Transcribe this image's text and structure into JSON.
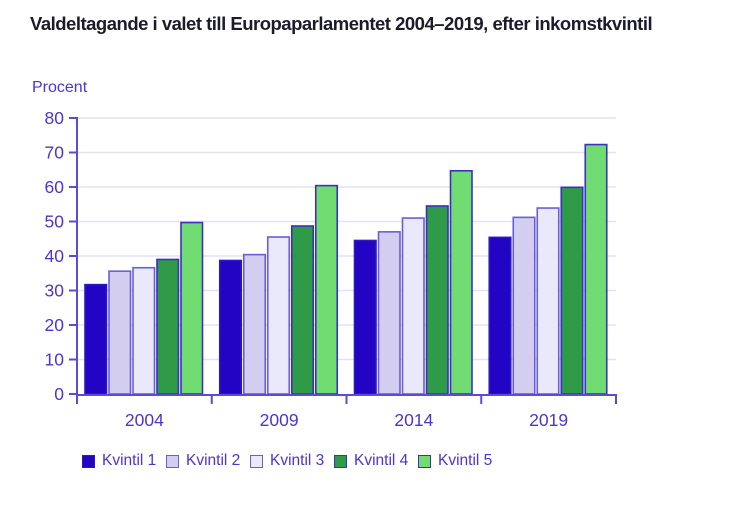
{
  "chart_data": {
    "type": "bar",
    "title": "Valdeltagande i valet till Europaparlamentet 2004–2019, efter inkomstkvintil",
    "ylabel": "Procent",
    "xlabel": "",
    "ylim": [
      0,
      80
    ],
    "ytick_step": 10,
    "grid": "horizontal",
    "legend_position": "bottom",
    "categories": [
      "2004",
      "2009",
      "2014",
      "2019"
    ],
    "series": [
      {
        "name": "Kvintil 1",
        "fill": "#2404c4",
        "stroke": "#2a18c0",
        "values": [
          31.7,
          38.7,
          44.5,
          45.4
        ]
      },
      {
        "name": "Kvintil 2",
        "fill": "#d3cdef",
        "stroke": "#6a5ed8",
        "values": [
          35.6,
          40.4,
          47.0,
          51.2
        ]
      },
      {
        "name": "Kvintil 3",
        "fill": "#eae9fb",
        "stroke": "#6a5ed8",
        "values": [
          36.6,
          45.5,
          51.0,
          53.9
        ]
      },
      {
        "name": "Kvintil 4",
        "fill": "#2f9a48",
        "stroke": "#3a30c2",
        "values": [
          39.0,
          48.7,
          54.5,
          59.9
        ]
      },
      {
        "name": "Kvintil 5",
        "fill": "#70dc71",
        "stroke": "#3a30c2",
        "values": [
          49.7,
          60.4,
          64.7,
          72.3
        ]
      }
    ]
  },
  "palette": {
    "axis": "#5b4bd7",
    "grid": "#e3e2f3",
    "label": "#4c34d0",
    "title": "#1c1b2a",
    "background": "#ffffff"
  }
}
